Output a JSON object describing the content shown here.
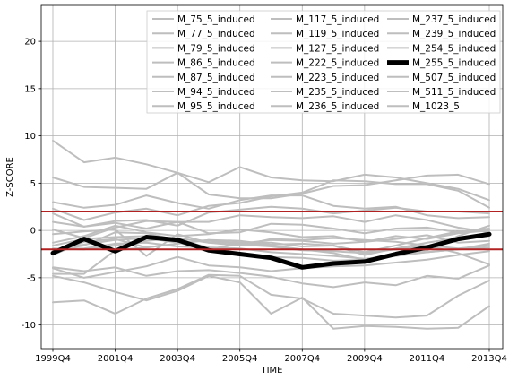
{
  "chart_data": {
    "type": "line",
    "xlabel": "TIME",
    "ylabel": "Z-SCORE",
    "x": [
      "1999Q4",
      "2000Q4",
      "2001Q4",
      "2002Q4",
      "2003Q4",
      "2004Q4",
      "2005Q4",
      "2006Q4",
      "2007Q4",
      "2008Q4",
      "2009Q4",
      "2010Q4",
      "2011Q4",
      "2012Q4",
      "2013Q4"
    ],
    "xticks": [
      "1999Q4",
      "2001Q4",
      "2003Q4",
      "2005Q4",
      "2007Q4",
      "2009Q4",
      "2011Q4",
      "2013Q4"
    ],
    "ylim": [
      -12.5,
      23.8
    ],
    "yticks": [
      -10,
      -5,
      0,
      5,
      10,
      15,
      20
    ],
    "grid": true,
    "legend_placement": "top-right",
    "reference_lines": {
      "values": [
        2,
        -2
      ],
      "color": "#b22222"
    },
    "series_color": "#bebebe",
    "highlight_color": "#000000",
    "highlight": "M_255_5_induced",
    "series": [
      {
        "name": "M_75_5_induced",
        "values": [
          9.5,
          7.2,
          7.7,
          7.0,
          6.1,
          5.1,
          6.7,
          5.6,
          5.3,
          5.2,
          5.9,
          5.6,
          5.0,
          4.4,
          3.2
        ]
      },
      {
        "name": "M_77_5_induced",
        "values": [
          5.6,
          4.6,
          4.5,
          4.4,
          6.1,
          3.8,
          3.4,
          3.4,
          3.9,
          4.7,
          4.8,
          5.3,
          5.8,
          5.9,
          4.9
        ]
      },
      {
        "name": "M_79_5_induced",
        "values": [
          3.0,
          2.4,
          2.7,
          3.7,
          2.9,
          2.3,
          3.2,
          3.7,
          3.7,
          2.6,
          2.3,
          2.5,
          1.6,
          1.3,
          1.4
        ]
      },
      {
        "name": "M_86_5_induced",
        "values": [
          2.3,
          1.1,
          1.9,
          2.3,
          1.6,
          2.6,
          2.9,
          3.6,
          4.0,
          5.3,
          5.2,
          4.9,
          4.9,
          4.2,
          2.4
        ]
      },
      {
        "name": "M_87_5_induced",
        "values": [
          1.8,
          0.4,
          1.0,
          1.1,
          0.5,
          1.9,
          2.2,
          2.5,
          2.3,
          1.8,
          2.1,
          2.4,
          2.0,
          2.0,
          1.8
        ]
      },
      {
        "name": "M_94_5_induced",
        "values": [
          0.9,
          0.4,
          0.8,
          0.2,
          0.9,
          -0.3,
          -0.2,
          0.7,
          0.6,
          0.2,
          -0.3,
          0.2,
          0.3,
          -0.2,
          0.1
        ]
      },
      {
        "name": "M_95_5_induced",
        "values": [
          -0.4,
          -0.1,
          0.1,
          -2.7,
          -0.4,
          -1.3,
          -1.3,
          -1.6,
          -2.0,
          -2.4,
          -3.1,
          -2.4,
          -2.1,
          -0.6,
          0.5
        ]
      },
      {
        "name": "M_117_5_induced",
        "values": [
          -1.6,
          -0.9,
          -0.7,
          -0.6,
          -0.9,
          -1.1,
          -1.3,
          -1.3,
          -1.7,
          -1.6,
          -2.3,
          -1.6,
          -0.8,
          -0.1,
          0.2
        ]
      },
      {
        "name": "M_119_5_induced",
        "values": [
          -4.6,
          -4.6,
          -2.1,
          -1.8,
          -1.4,
          -1.0,
          -1.1,
          -1.5,
          -1.4,
          -1.6,
          -2.6,
          -1.9,
          -1.3,
          -0.8,
          -0.6
        ]
      },
      {
        "name": "M_127_5_induced",
        "values": [
          -4.8,
          -5.5,
          -6.5,
          -7.4,
          -6.4,
          -4.8,
          -5.5,
          -8.8,
          -7.1,
          -10.4,
          -10.1,
          -10.2,
          -10.4,
          -10.3,
          -8.0
        ]
      },
      {
        "name": "M_222_5_induced",
        "values": [
          -7.6,
          -7.4,
          -8.8,
          -7.2,
          -6.2,
          -4.7,
          -4.8,
          -6.8,
          -7.2,
          -8.8,
          -9.0,
          -9.2,
          -9.0,
          -6.9,
          -5.3
        ]
      },
      {
        "name": "M_223_5_induced",
        "values": [
          -3.9,
          -4.3,
          -3.9,
          -4.8,
          -4.3,
          -4.2,
          -4.5,
          -4.9,
          -5.6,
          -6.0,
          -5.5,
          -5.8,
          -4.8,
          -5.1,
          -3.7
        ]
      },
      {
        "name": "M_235_5_induced",
        "values": [
          -4.0,
          -5.0,
          -4.4,
          -3.8,
          -2.8,
          -3.7,
          -3.9,
          -4.3,
          -4.0,
          -3.8,
          -3.7,
          -3.4,
          -3.1,
          -2.6,
          -2.2
        ]
      },
      {
        "name": "M_236_5_induced",
        "values": [
          -1.9,
          -2.0,
          -1.6,
          -1.1,
          -0.8,
          -1.3,
          -1.6,
          -0.9,
          -1.0,
          -0.8,
          -1.0,
          -1.2,
          -1.6,
          -2.4,
          -3.6
        ]
      },
      {
        "name": "M_237_5_induced",
        "values": [
          -1.3,
          -0.6,
          0.5,
          -0.2,
          -0.6,
          -0.4,
          0.1,
          -0.2,
          -0.7,
          -0.6,
          -1.2,
          -0.9,
          -0.5,
          -1.3,
          -1.1
        ]
      },
      {
        "name": "M_239_5_induced",
        "values": [
          -2.0,
          -1.9,
          -1.4,
          -1.3,
          -1.7,
          -1.8,
          -2.6,
          -2.8,
          -2.9,
          -3.2,
          -3.1,
          -2.6,
          -2.3,
          -2.0,
          -1.4
        ]
      },
      {
        "name": "M_254_5_induced",
        "values": [
          0.1,
          -0.8,
          0.3,
          1.0,
          0.9,
          0.9,
          1.6,
          1.4,
          1.3,
          1.5,
          0.9,
          1.6,
          1.1,
          0.3,
          -0.2
        ]
      },
      {
        "name": "M_255_5_induced",
        "values": [
          -2.4,
          -0.9,
          -2.2,
          -0.7,
          -1.0,
          -2.1,
          -2.5,
          -2.9,
          -3.9,
          -3.5,
          -3.3,
          -2.5,
          -1.8,
          -0.9,
          -0.4
        ]
      },
      {
        "name": "M_507_5_induced",
        "values": [
          -2.6,
          -1.2,
          -0.9,
          -1.8,
          -1.4,
          -1.0,
          -1.5,
          -1.7,
          -2.1,
          -2.2,
          -2.4,
          -2.0,
          -1.6,
          -1.9,
          -1.6
        ]
      },
      {
        "name": "M_511_5_induced",
        "values": [
          -2.1,
          -1.6,
          -0.2,
          -0.3,
          -1.0,
          -1.8,
          -1.9,
          -2.3,
          -2.5,
          -2.7,
          -3.0,
          -2.7,
          -2.3,
          -2.0,
          -1.8
        ]
      },
      {
        "name": "M_1023_5",
        "values": [
          -2.3,
          -1.5,
          -1.0,
          -0.8,
          -1.3,
          -2.0,
          -1.4,
          -1.0,
          -1.1,
          -1.4,
          -1.2,
          -0.6,
          -0.9,
          -0.3,
          0.0
        ]
      }
    ]
  }
}
